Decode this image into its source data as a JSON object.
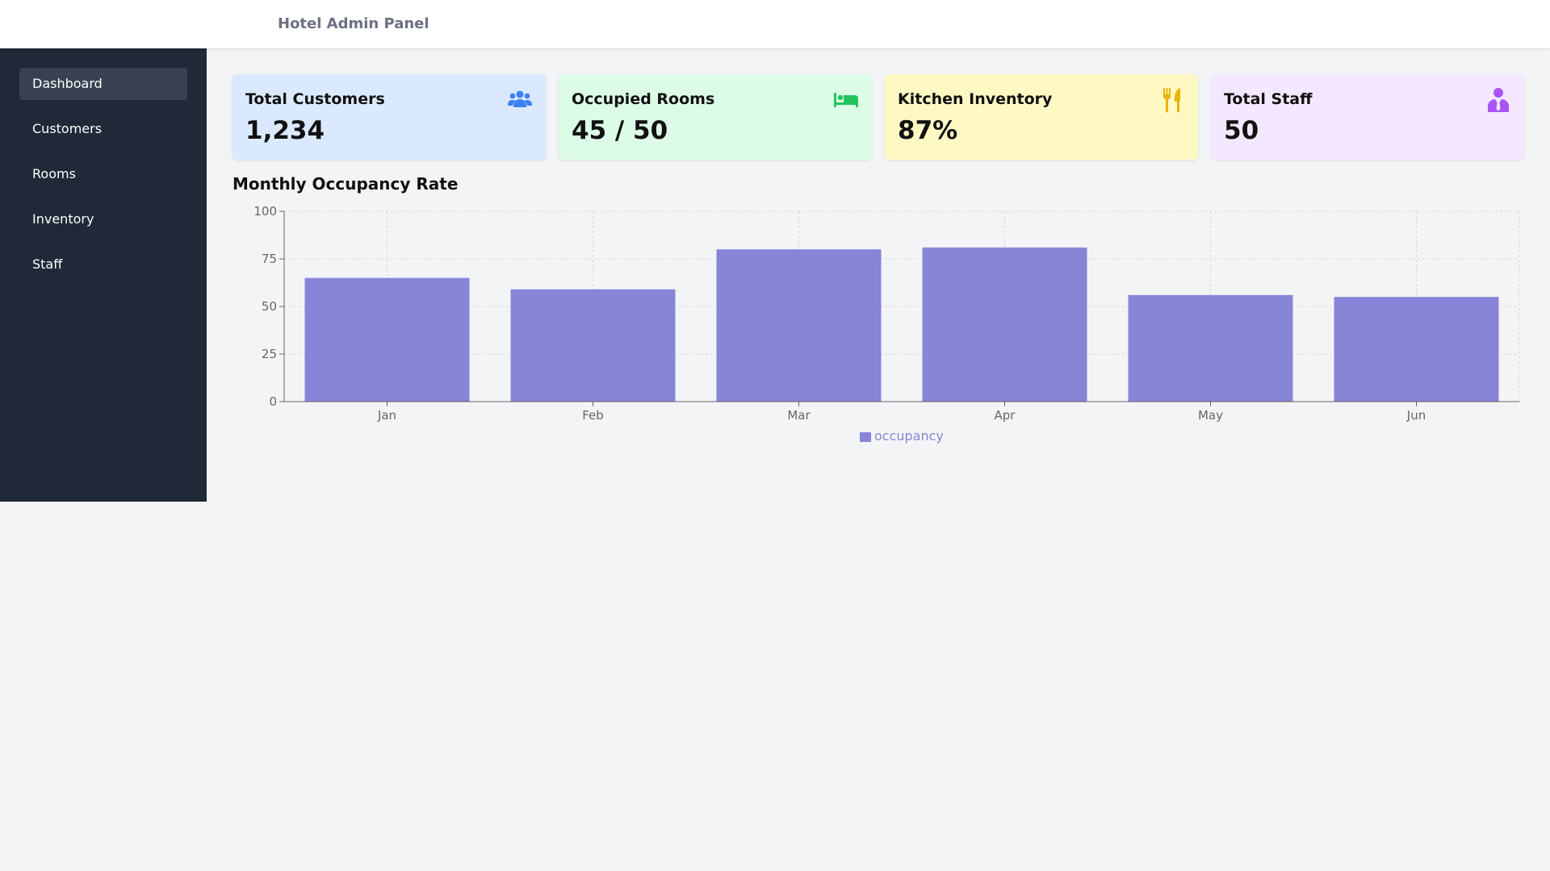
{
  "app": {
    "title": "Hotel Admin Panel"
  },
  "sidebar": {
    "items": [
      {
        "label": "Dashboard",
        "active": true
      },
      {
        "label": "Customers"
      },
      {
        "label": "Rooms"
      },
      {
        "label": "Inventory"
      },
      {
        "label": "Staff"
      }
    ]
  },
  "cards": [
    {
      "label": "Total Customers",
      "value": "1,234",
      "icon": "users-icon",
      "bg": "#dbe9fe",
      "icon_color": "#3b82f6"
    },
    {
      "label": "Occupied Rooms",
      "value": "45 / 50",
      "icon": "bed-icon",
      "bg": "#dcfce7",
      "icon_color": "#22c55e"
    },
    {
      "label": "Kitchen Inventory",
      "value": "87%",
      "icon": "utensils-icon",
      "bg": "#fef9c3",
      "icon_color": "#eab308"
    },
    {
      "label": "Total Staff",
      "value": "50",
      "icon": "staff-icon",
      "bg": "#f3e8ff",
      "icon_color": "#a855f7"
    }
  ],
  "section": {
    "title": "Monthly Occupancy Rate"
  },
  "chart_data": {
    "type": "bar",
    "categories": [
      "Jan",
      "Feb",
      "Mar",
      "Apr",
      "May",
      "Jun"
    ],
    "series": [
      {
        "name": "occupancy",
        "values": [
          65,
          59,
          80,
          81,
          56,
          55
        ],
        "color": "#8884d8"
      }
    ],
    "ylim": [
      0,
      100
    ],
    "yticks": [
      0,
      25,
      50,
      75,
      100
    ],
    "grid": true,
    "legend": "bottom-center",
    "title": "",
    "xlabel": "",
    "ylabel": ""
  }
}
